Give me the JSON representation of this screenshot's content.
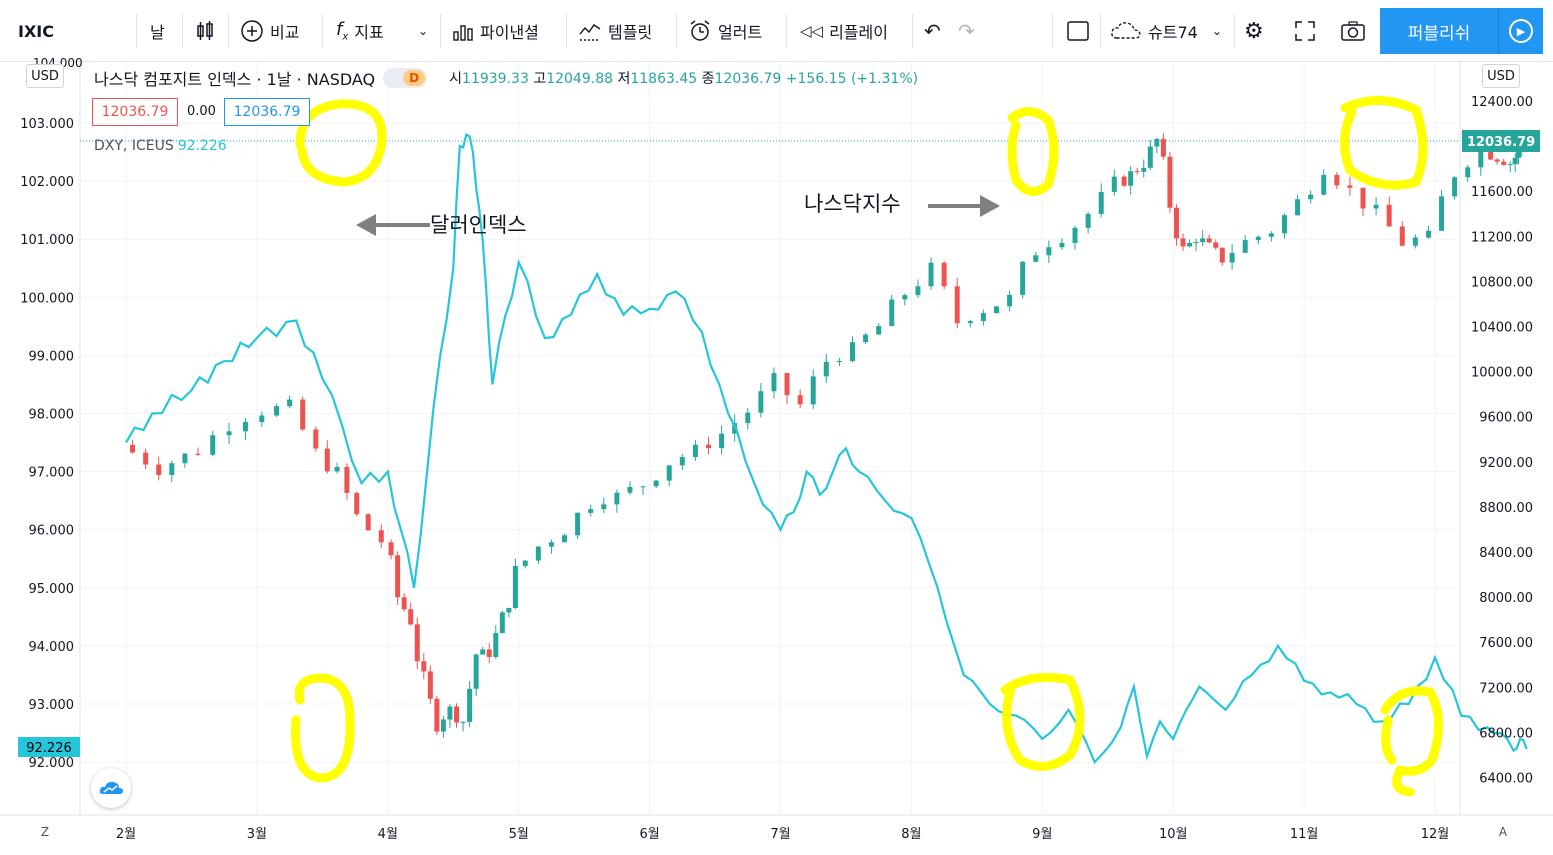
{
  "toolbar": {
    "symbol": "IXIC",
    "interval": "날",
    "compare": "비교",
    "indicators": "지표",
    "financials": "파이낸셜",
    "templates": "템플릿",
    "alert": "얼러트",
    "replay": "리플레이",
    "layout": "슈트74",
    "publish": "퍼블리쉬"
  },
  "legend": {
    "title": "나스닥 컴포지트 인덱스 · 1날 · NASDAQ",
    "badge": "D",
    "o_label": "시",
    "o": "11939.33",
    "h_label": "고",
    "h": "12049.88",
    "l_label": "저",
    "l": "11863.45",
    "c_label": "종",
    "c": "12036.79",
    "change": "+156.15 (+1.31%)",
    "bid": "12036.79",
    "spread": "0.00",
    "ask": "12036.79",
    "dxy_name": "DXY, ICEUS",
    "dxy_value": "92.226"
  },
  "axis": {
    "currency_left": "USD",
    "currency_right": "USD",
    "left_top_partial": "104.000",
    "corner_left": "Z",
    "corner_right": "A",
    "right_last_label": "12036.79",
    "left_last_label": "92.226"
  },
  "annotations": {
    "dollar": "달러인덱스",
    "nasdaq": "나스닥지수"
  },
  "colors": {
    "up": "#26a69a",
    "down": "#ef5350",
    "dxy_line": "#26c6da",
    "highlight": "#ffff00",
    "accent": "#2196f3"
  },
  "chart_data": {
    "type": "line",
    "title": "나스닥 컴포지트 인덱스",
    "x_axis_labels": [
      "2월",
      "3월",
      "4월",
      "5월",
      "6월",
      "7월",
      "8월",
      "9월",
      "10월",
      "11월",
      "12월"
    ],
    "left_axis": {
      "name": "DXY",
      "ticks": [
        92,
        93,
        94,
        95,
        96,
        97,
        98,
        99,
        100,
        101,
        102,
        103
      ],
      "range": [
        91.1,
        104.0
      ]
    },
    "right_axis": {
      "name": "IXIC",
      "ticks": [
        6400,
        6800,
        7200,
        7600,
        8000,
        8400,
        8800,
        9200,
        9600,
        10000,
        10400,
        10800,
        11200,
        11600,
        12000,
        12400
      ],
      "range": [
        6100,
        12550
      ]
    },
    "series": [
      {
        "name": "DXY, ICEUS",
        "axis": "left",
        "x_month": [
          1.0,
          1.2,
          1.5,
          1.75,
          2.0,
          2.3,
          2.5,
          2.65,
          2.8,
          3.0,
          3.1,
          3.2,
          3.3,
          3.4,
          3.5,
          3.55,
          3.6,
          3.65,
          3.7,
          3.75,
          3.8,
          3.9,
          4.0,
          4.2,
          4.4,
          4.6,
          4.8,
          5.0,
          5.2,
          5.4,
          5.6,
          5.8,
          6.0,
          6.1,
          6.2,
          6.3,
          6.4,
          6.5,
          6.6,
          6.8,
          7.0,
          7.2,
          7.4,
          7.6,
          7.8,
          8.0,
          8.2,
          8.4,
          8.6,
          8.7,
          8.8,
          8.9,
          9.0,
          9.1,
          9.2,
          9.3,
          9.4,
          9.6,
          9.8,
          10.0,
          10.2,
          10.4,
          10.6,
          10.8,
          11.0,
          11.2,
          11.4,
          11.5,
          11.6,
          11.65,
          11.7
        ],
        "values": [
          97.5,
          98.0,
          98.4,
          98.9,
          99.3,
          99.6,
          98.6,
          97.8,
          96.8,
          97.0,
          96.0,
          95.0,
          97.0,
          99.0,
          100.5,
          102.6,
          102.8,
          102.5,
          101.5,
          100.2,
          98.5,
          99.7,
          100.6,
          99.3,
          99.7,
          100.4,
          99.7,
          99.8,
          100.1,
          99.4,
          98.0,
          96.8,
          96.0,
          96.3,
          97.0,
          96.6,
          97.0,
          97.4,
          97.0,
          96.5,
          96.2,
          95.0,
          93.5,
          93.0,
          92.8,
          92.4,
          92.9,
          92.0,
          92.6,
          93.3,
          92.1,
          92.7,
          92.4,
          92.9,
          93.3,
          93.1,
          92.9,
          93.5,
          94.0,
          93.4,
          93.2,
          93.0,
          92.7,
          93.0,
          93.8,
          92.8,
          92.6,
          92.5,
          92.2,
          92.4,
          92.226
        ]
      },
      {
        "name": "IXIC",
        "axis": "right",
        "type": "candlestick",
        "x_month": [
          1.0,
          1.3,
          1.6,
          1.85,
          2.1,
          2.3,
          2.5,
          2.65,
          2.8,
          3.0,
          3.1,
          3.2,
          3.3,
          3.4,
          3.5,
          3.6,
          3.7,
          3.8,
          3.9,
          4.0,
          4.2,
          4.4,
          4.6,
          4.8,
          5.0,
          5.2,
          5.4,
          5.6,
          5.8,
          6.0,
          6.2,
          6.4,
          6.6,
          6.8,
          7.0,
          7.2,
          7.4,
          7.6,
          7.8,
          8.0,
          8.2,
          8.4,
          8.6,
          8.7,
          8.8,
          8.9,
          9.0,
          9.1,
          9.2,
          9.3,
          9.4,
          9.6,
          9.8,
          10.0,
          10.2,
          10.4,
          10.6,
          10.8,
          11.0,
          11.2,
          11.4,
          11.5,
          11.6,
          11.65,
          11.7
        ],
        "values": [
          9350,
          9150,
          9300,
          9550,
          9650,
          9700,
          9250,
          9100,
          8700,
          8500,
          8000,
          7800,
          7200,
          6900,
          7000,
          6900,
          7500,
          7500,
          7800,
          8200,
          8450,
          8600,
          8850,
          8900,
          9000,
          9200,
          9300,
          9450,
          9650,
          9900,
          9700,
          10100,
          10200,
          10400,
          10700,
          10900,
          10450,
          10550,
          10650,
          11100,
          11200,
          11400,
          11650,
          11750,
          11850,
          12050,
          11500,
          11050,
          11200,
          11100,
          11000,
          11150,
          11250,
          11500,
          11850,
          11600,
          11400,
          11150,
          11200,
          11800,
          11950,
          11900,
          11850,
          11950,
          12036.79
        ]
      }
    ]
  }
}
